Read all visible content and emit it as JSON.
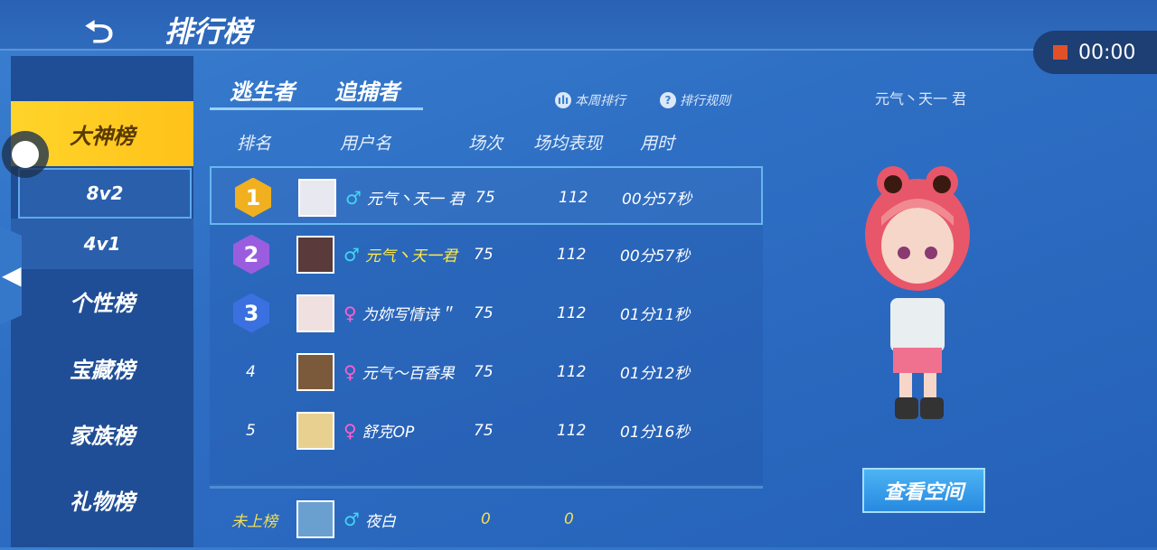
{
  "header": {
    "back_icon": "back-arrow-icon",
    "title": "排行榜"
  },
  "recorder": {
    "time": "00:00"
  },
  "sidebar": {
    "items": [
      {
        "label": "大神榜",
        "active": true
      },
      {
        "label": "8v2",
        "selected": true
      },
      {
        "label": "4v1"
      },
      {
        "label": "个性榜"
      },
      {
        "label": "宝藏榜"
      },
      {
        "label": "家族榜"
      },
      {
        "label": "礼物榜"
      }
    ]
  },
  "tabs": [
    {
      "label": "逃生者"
    },
    {
      "label": "追捕者",
      "active": true
    }
  ],
  "links": {
    "weekly": "本周排行",
    "rules": "排行规则"
  },
  "columns": [
    "排名",
    "用户名",
    "场次",
    "场均表现",
    "用时"
  ],
  "rows": [
    {
      "rank": "1",
      "gender": "♂",
      "name": "元气丶天一 君",
      "games": "75",
      "avg": "112",
      "time": "00分57秒",
      "medal_color": "#f0b020"
    },
    {
      "rank": "2",
      "gender": "♂",
      "name": "元气丶天一君",
      "games": "75",
      "avg": "112",
      "time": "00分57秒",
      "medal_color": "#9a5de0"
    },
    {
      "rank": "3",
      "gender": "♀",
      "name": "为妳写情诗＂",
      "games": "75",
      "avg": "112",
      "time": "01分11秒",
      "medal_color": "#3a70e0"
    },
    {
      "rank": "4",
      "gender": "♀",
      "name": "元气～百香果",
      "games": "75",
      "avg": "112",
      "time": "01分12秒"
    },
    {
      "rank": "5",
      "gender": "♀",
      "name": "舒克OP",
      "games": "75",
      "avg": "112",
      "time": "01分16秒"
    }
  ],
  "self": {
    "rank": "未上榜",
    "gender": "♂",
    "name": "夜白",
    "games": "0",
    "avg": "0"
  },
  "profile": {
    "name": "元气丶天一 君",
    "view_button": "查看空间"
  },
  "colors": {
    "accent": "#ffd42a",
    "male": "#40d8f0",
    "female": "#ff5fd0"
  }
}
